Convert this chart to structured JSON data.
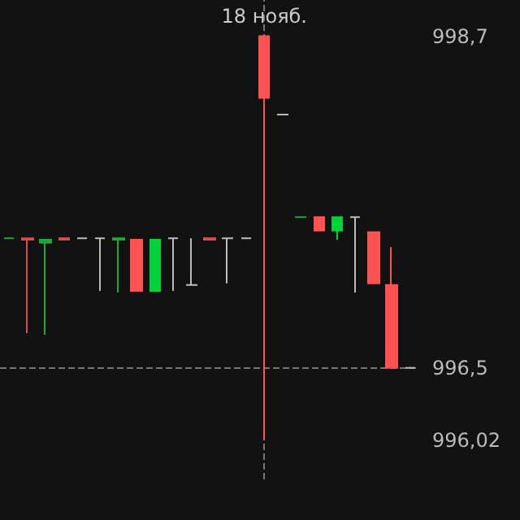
{
  "chart_data": {
    "type": "candlestick",
    "categories": [
      null,
      null,
      null,
      null,
      null,
      null,
      null,
      null,
      null,
      null,
      null,
      null,
      null,
      null,
      "18 нояб.",
      null,
      null,
      null,
      null,
      null,
      null,
      null,
      null
    ],
    "ohlc": [
      [
        997.36,
        997.36,
        997.36,
        997.36
      ],
      [
        997.36,
        997.36,
        996.73,
        997.35
      ],
      [
        997.33,
        997.35,
        996.72,
        997.35
      ],
      [
        997.36,
        997.36,
        997.35,
        997.35
      ],
      [
        997.36,
        997.36,
        997.36,
        997.36
      ],
      [
        997.36,
        997.36,
        997.01,
        997.36
      ],
      [
        997.35,
        997.36,
        997.0,
        997.36
      ],
      [
        997.35,
        997.35,
        997.01,
        997.01
      ],
      [
        997.01,
        997.35,
        997.01,
        997.35
      ],
      [
        997.36,
        997.36,
        997.01,
        997.36
      ],
      [
        997.05,
        997.36,
        997.05,
        997.05
      ],
      [
        997.36,
        997.36,
        997.35,
        997.35
      ],
      [
        997.36,
        997.36,
        997.06,
        997.36
      ],
      [
        997.36,
        997.36,
        997.36,
        997.36
      ],
      [
        998.7,
        998.7,
        996.02,
        998.29
      ],
      [
        998.18,
        998.18,
        998.18,
        998.18
      ],
      [
        997.5,
        997.5,
        997.5,
        997.5
      ],
      [
        997.5,
        997.5,
        997.41,
        997.41
      ],
      [
        997.41,
        997.5,
        997.35,
        997.5
      ],
      [
        997.5,
        997.5,
        997.0,
        997.5
      ],
      [
        997.4,
        997.4,
        997.06,
        997.06
      ],
      [
        997.05,
        997.3,
        996.5,
        996.5
      ],
      [
        996.5,
        996.5,
        996.5,
        996.5
      ]
    ],
    "colors": [
      "#1fa83a",
      "#d94c4c",
      "#1fa83a",
      "#d94c4c",
      "#bdbdbd",
      "#bdbdbd",
      "#1fa83a",
      "#ff5252",
      "#00d23a",
      "#bdbdbd",
      "#bdbdbd",
      "#d94c4c",
      "#bdbdbd",
      "#bdbdbd",
      "#ff5252",
      "#bdbdbd",
      "#1fa83a",
      "#ff5252",
      "#00d23a",
      "#bdbdbd",
      "#ff5252",
      "#ff5252",
      "#bdbdbd"
    ],
    "ylim": [
      995.76,
      998.94
    ],
    "yticks": [
      {
        "value": 998.7,
        "label": "998,7"
      },
      {
        "value": 996.5,
        "label": "996,5"
      },
      {
        "value": 996.02,
        "label": "996,02"
      }
    ],
    "ref_lines": [
      {
        "axis": "x",
        "value": "18 нояб.",
        "color": "#777777",
        "line_style": "dashed"
      },
      {
        "axis": "y",
        "value": 996.5,
        "color": "#777777",
        "line_style": "dashed"
      }
    ],
    "grid": false
  }
}
